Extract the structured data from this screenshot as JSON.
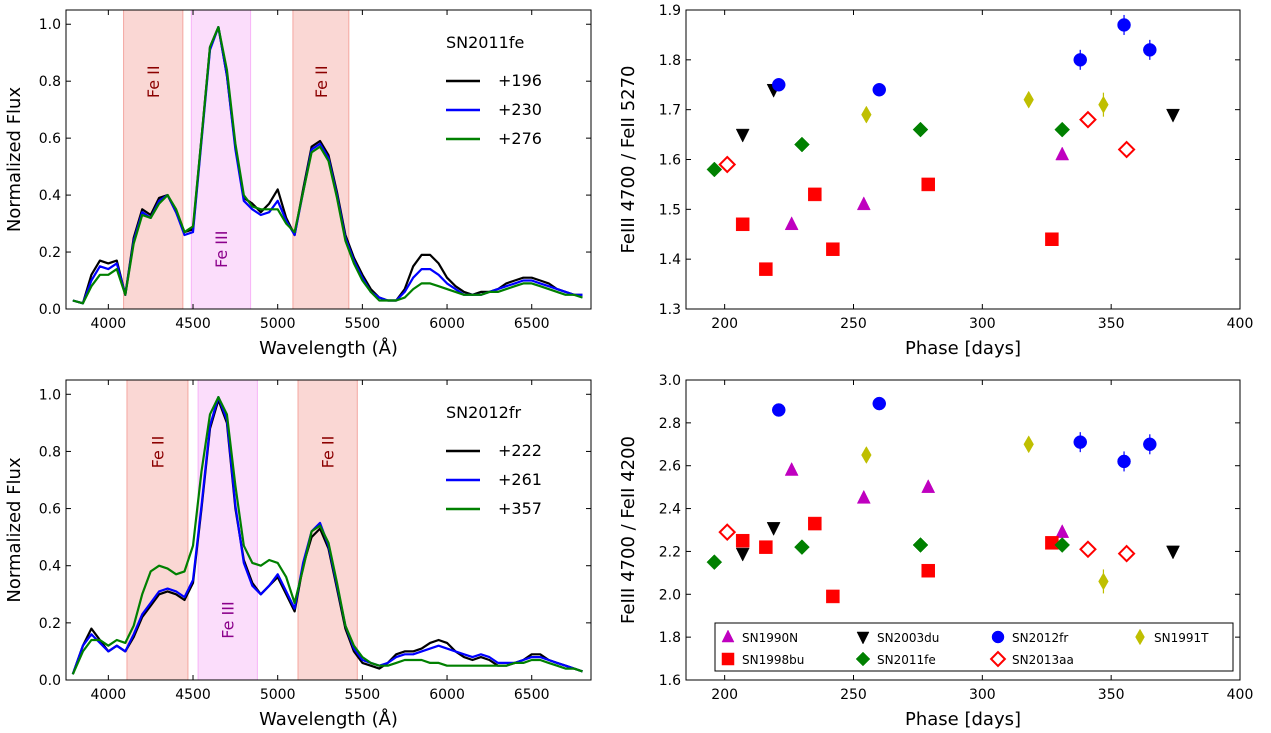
{
  "chart_data": [
    {
      "type": "line",
      "panel": "top-left",
      "xlabel": "Wavelength (Å)",
      "ylabel": "Normalized Flux",
      "xlim": [
        3750,
        6850
      ],
      "ylim": [
        0.0,
        1.05
      ],
      "xticks": [
        4000,
        4500,
        5000,
        5500,
        6000,
        6500
      ],
      "yticks": [
        0.0,
        0.2,
        0.4,
        0.6,
        0.8,
        1.0
      ],
      "legend_title": "SN2011fe",
      "legend_position": "top-right",
      "bands": [
        {
          "label": "Fe II",
          "x0": 4090,
          "x1": 4440,
          "color": "#f4a6a0",
          "label_color": "#8b0000"
        },
        {
          "label": "Fe III",
          "x0": 4490,
          "x1": 4840,
          "color": "#f7b3f7",
          "label_color": "#8b008b"
        },
        {
          "label": "Fe II",
          "x0": 5090,
          "x1": 5420,
          "color": "#f4a6a0",
          "label_color": "#8b0000"
        }
      ],
      "x": [
        3790,
        3850,
        3900,
        3950,
        4000,
        4050,
        4100,
        4150,
        4200,
        4250,
        4300,
        4350,
        4400,
        4450,
        4500,
        4550,
        4600,
        4650,
        4700,
        4750,
        4800,
        4850,
        4900,
        4950,
        5000,
        5050,
        5100,
        5150,
        5200,
        5250,
        5300,
        5350,
        5400,
        5450,
        5500,
        5550,
        5600,
        5650,
        5700,
        5750,
        5800,
        5850,
        5900,
        5950,
        6000,
        6050,
        6100,
        6150,
        6200,
        6250,
        6300,
        6350,
        6400,
        6450,
        6500,
        6550,
        6600,
        6650,
        6700,
        6750,
        6800
      ],
      "series": [
        {
          "name": "+196",
          "color": "#000000",
          "values": [
            0.03,
            0.02,
            0.12,
            0.17,
            0.16,
            0.17,
            0.05,
            0.25,
            0.35,
            0.33,
            0.39,
            0.4,
            0.34,
            0.27,
            0.28,
            0.6,
            0.92,
            0.99,
            0.82,
            0.57,
            0.39,
            0.37,
            0.34,
            0.37,
            0.42,
            0.32,
            0.26,
            0.42,
            0.57,
            0.59,
            0.54,
            0.41,
            0.26,
            0.18,
            0.12,
            0.07,
            0.04,
            0.03,
            0.03,
            0.07,
            0.15,
            0.19,
            0.19,
            0.16,
            0.11,
            0.08,
            0.06,
            0.05,
            0.06,
            0.06,
            0.07,
            0.09,
            0.1,
            0.11,
            0.11,
            0.1,
            0.09,
            0.07,
            0.06,
            0.05,
            0.05
          ]
        },
        {
          "name": "+230",
          "color": "#0000ff",
          "values": [
            0.03,
            0.02,
            0.1,
            0.15,
            0.14,
            0.16,
            0.05,
            0.24,
            0.34,
            0.32,
            0.38,
            0.4,
            0.34,
            0.26,
            0.27,
            0.59,
            0.91,
            0.99,
            0.82,
            0.56,
            0.38,
            0.35,
            0.33,
            0.34,
            0.38,
            0.31,
            0.26,
            0.41,
            0.56,
            0.58,
            0.53,
            0.4,
            0.25,
            0.17,
            0.11,
            0.06,
            0.04,
            0.03,
            0.03,
            0.06,
            0.11,
            0.14,
            0.14,
            0.12,
            0.09,
            0.07,
            0.05,
            0.05,
            0.05,
            0.06,
            0.07,
            0.08,
            0.09,
            0.1,
            0.1,
            0.09,
            0.08,
            0.07,
            0.06,
            0.05,
            0.05
          ]
        },
        {
          "name": "+276",
          "color": "#008000",
          "values": [
            0.03,
            0.02,
            0.08,
            0.12,
            0.12,
            0.14,
            0.05,
            0.23,
            0.33,
            0.32,
            0.37,
            0.4,
            0.35,
            0.27,
            0.29,
            0.6,
            0.92,
            0.99,
            0.84,
            0.58,
            0.4,
            0.36,
            0.35,
            0.35,
            0.35,
            0.3,
            0.27,
            0.41,
            0.55,
            0.57,
            0.52,
            0.39,
            0.24,
            0.16,
            0.1,
            0.06,
            0.03,
            0.03,
            0.03,
            0.04,
            0.07,
            0.09,
            0.09,
            0.08,
            0.07,
            0.06,
            0.05,
            0.05,
            0.05,
            0.06,
            0.06,
            0.07,
            0.08,
            0.09,
            0.09,
            0.08,
            0.07,
            0.06,
            0.05,
            0.05,
            0.04
          ]
        }
      ]
    },
    {
      "type": "line",
      "panel": "bottom-left",
      "xlabel": "Wavelength (Å)",
      "ylabel": "Normalized Flux",
      "xlim": [
        3750,
        6850
      ],
      "ylim": [
        0.0,
        1.05
      ],
      "xticks": [
        4000,
        4500,
        5000,
        5500,
        6000,
        6500
      ],
      "yticks": [
        0.0,
        0.2,
        0.4,
        0.6,
        0.8,
        1.0
      ],
      "legend_title": "SN2012fr",
      "legend_position": "top-right",
      "bands": [
        {
          "label": "Fe II",
          "x0": 4110,
          "x1": 4470,
          "color": "#f4a6a0",
          "label_color": "#8b0000"
        },
        {
          "label": "Fe III",
          "x0": 4530,
          "x1": 4880,
          "color": "#f7b3f7",
          "label_color": "#8b008b"
        },
        {
          "label": "Fe II",
          "x0": 5120,
          "x1": 5470,
          "color": "#f4a6a0",
          "label_color": "#8b0000"
        }
      ],
      "x": [
        3790,
        3850,
        3900,
        3950,
        4000,
        4050,
        4100,
        4150,
        4200,
        4250,
        4300,
        4350,
        4400,
        4450,
        4500,
        4550,
        4600,
        4650,
        4700,
        4750,
        4800,
        4850,
        4900,
        4950,
        5000,
        5050,
        5100,
        5150,
        5200,
        5250,
        5300,
        5350,
        5400,
        5450,
        5500,
        5550,
        5600,
        5650,
        5700,
        5750,
        5800,
        5850,
        5900,
        5950,
        6000,
        6050,
        6100,
        6150,
        6200,
        6250,
        6300,
        6350,
        6400,
        6450,
        6500,
        6550,
        6600,
        6650,
        6700,
        6750,
        6800
      ],
      "series": [
        {
          "name": "+222",
          "color": "#000000",
          "values": [
            0.02,
            0.12,
            0.18,
            0.14,
            0.1,
            0.12,
            0.1,
            0.15,
            0.22,
            0.26,
            0.3,
            0.31,
            0.3,
            0.28,
            0.34,
            0.6,
            0.88,
            0.98,
            0.9,
            0.6,
            0.42,
            0.34,
            0.3,
            0.33,
            0.36,
            0.3,
            0.24,
            0.4,
            0.5,
            0.53,
            0.46,
            0.32,
            0.18,
            0.1,
            0.06,
            0.05,
            0.04,
            0.06,
            0.09,
            0.1,
            0.1,
            0.11,
            0.13,
            0.14,
            0.13,
            0.1,
            0.08,
            0.07,
            0.08,
            0.07,
            0.05,
            0.05,
            0.06,
            0.07,
            0.09,
            0.09,
            0.07,
            0.06,
            0.05,
            0.04,
            0.03
          ]
        },
        {
          "name": "+261",
          "color": "#0000ff",
          "values": [
            0.02,
            0.12,
            0.16,
            0.13,
            0.1,
            0.12,
            0.1,
            0.16,
            0.23,
            0.27,
            0.31,
            0.32,
            0.31,
            0.29,
            0.35,
            0.61,
            0.89,
            0.99,
            0.91,
            0.61,
            0.41,
            0.33,
            0.3,
            0.33,
            0.37,
            0.31,
            0.25,
            0.41,
            0.52,
            0.55,
            0.47,
            0.33,
            0.19,
            0.11,
            0.07,
            0.06,
            0.05,
            0.06,
            0.08,
            0.09,
            0.09,
            0.1,
            0.11,
            0.12,
            0.11,
            0.1,
            0.09,
            0.08,
            0.09,
            0.08,
            0.06,
            0.06,
            0.06,
            0.07,
            0.08,
            0.08,
            0.07,
            0.06,
            0.05,
            0.04,
            0.03
          ]
        },
        {
          "name": "+357",
          "color": "#008000",
          "values": [
            0.02,
            0.1,
            0.14,
            0.14,
            0.12,
            0.14,
            0.13,
            0.19,
            0.3,
            0.38,
            0.4,
            0.39,
            0.37,
            0.38,
            0.47,
            0.73,
            0.93,
            0.99,
            0.93,
            0.68,
            0.47,
            0.41,
            0.4,
            0.42,
            0.41,
            0.36,
            0.27,
            0.39,
            0.52,
            0.54,
            0.48,
            0.34,
            0.19,
            0.12,
            0.08,
            0.06,
            0.05,
            0.05,
            0.06,
            0.07,
            0.07,
            0.07,
            0.06,
            0.06,
            0.05,
            0.05,
            0.05,
            0.05,
            0.05,
            0.05,
            0.05,
            0.05,
            0.06,
            0.06,
            0.07,
            0.07,
            0.06,
            0.05,
            0.04,
            0.04,
            0.03
          ]
        }
      ]
    },
    {
      "type": "scatter",
      "panel": "top-right",
      "xlabel": "Phase [days]",
      "ylabel": "FeIII 4700 / FeII 5270",
      "xlim": [
        185,
        400
      ],
      "ylim": [
        1.3,
        1.9
      ],
      "xticks": [
        200,
        250,
        300,
        350,
        400
      ],
      "yticks": [
        1.3,
        1.4,
        1.5,
        1.6,
        1.7,
        1.8,
        1.9
      ],
      "series": [
        {
          "name": "SN1990N",
          "marker": "triangle-up",
          "color": "#bf00bf",
          "filled": true,
          "points": [
            [
              226,
              1.47
            ],
            [
              254,
              1.51
            ],
            [
              331,
              1.61
            ]
          ]
        },
        {
          "name": "SN1998bu",
          "marker": "square",
          "color": "#ff0000",
          "filled": true,
          "points": [
            [
              207,
              1.47
            ],
            [
              216,
              1.38
            ],
            [
              235,
              1.53
            ],
            [
              242,
              1.42
            ],
            [
              279,
              1.55
            ],
            [
              327,
              1.44
            ]
          ]
        },
        {
          "name": "SN2003du",
          "marker": "triangle-down",
          "color": "#000000",
          "filled": true,
          "points": [
            [
              207,
              1.65
            ],
            [
              219,
              1.74
            ],
            [
              374,
              1.69
            ]
          ]
        },
        {
          "name": "SN2011fe",
          "marker": "diamond",
          "color": "#008000",
          "filled": true,
          "points": [
            [
              196,
              1.58
            ],
            [
              230,
              1.63
            ],
            [
              276,
              1.66
            ],
            [
              331,
              1.66
            ]
          ]
        },
        {
          "name": "SN2012fr",
          "marker": "circle",
          "color": "#0000ff",
          "filled": true,
          "points": [
            [
              221,
              1.75
            ],
            [
              260,
              1.74
            ],
            [
              338,
              1.8
            ],
            [
              355,
              1.87
            ],
            [
              365,
              1.82
            ]
          ]
        },
        {
          "name": "SN2013aa",
          "marker": "diamond",
          "color": "#ff0000",
          "filled": false,
          "points": [
            [
              201,
              1.59
            ],
            [
              341,
              1.68
            ],
            [
              356,
              1.62
            ]
          ]
        },
        {
          "name": "SN1991T",
          "marker": "thin-diamond",
          "color": "#bfbf00",
          "filled": true,
          "points": [
            [
              255,
              1.69
            ],
            [
              318,
              1.72
            ],
            [
              347,
              1.71
            ]
          ]
        }
      ]
    },
    {
      "type": "scatter",
      "panel": "bottom-right",
      "xlabel": "Phase [days]",
      "ylabel": "FeIII 4700 / FeII 4200",
      "xlim": [
        185,
        400
      ],
      "ylim": [
        1.6,
        3.0
      ],
      "xticks": [
        200,
        250,
        300,
        350,
        400
      ],
      "yticks": [
        1.6,
        1.8,
        2.0,
        2.2,
        2.4,
        2.6,
        2.8,
        3.0
      ],
      "legend_position": "lower-center",
      "series": [
        {
          "name": "SN1990N",
          "marker": "triangle-up",
          "color": "#bf00bf",
          "filled": true,
          "points": [
            [
              226,
              2.58
            ],
            [
              254,
              2.45
            ],
            [
              279,
              2.5
            ],
            [
              331,
              2.29
            ]
          ]
        },
        {
          "name": "SN1998bu",
          "marker": "square",
          "color": "#ff0000",
          "filled": true,
          "points": [
            [
              207,
              2.25
            ],
            [
              216,
              2.22
            ],
            [
              235,
              2.33
            ],
            [
              242,
              1.99
            ],
            [
              279,
              2.11
            ],
            [
              327,
              2.24
            ]
          ]
        },
        {
          "name": "SN2003du",
          "marker": "triangle-down",
          "color": "#000000",
          "filled": true,
          "points": [
            [
              207,
              2.19
            ],
            [
              219,
              2.31
            ],
            [
              374,
              2.2
            ]
          ]
        },
        {
          "name": "SN2011fe",
          "marker": "diamond",
          "color": "#008000",
          "filled": true,
          "points": [
            [
              196,
              2.15
            ],
            [
              230,
              2.22
            ],
            [
              276,
              2.23
            ],
            [
              331,
              2.23
            ]
          ]
        },
        {
          "name": "SN2012fr",
          "marker": "circle",
          "color": "#0000ff",
          "filled": true,
          "points": [
            [
              221,
              2.86
            ],
            [
              260,
              2.89
            ],
            [
              338,
              2.71
            ],
            [
              355,
              2.62
            ],
            [
              365,
              2.7
            ]
          ]
        },
        {
          "name": "SN2013aa",
          "marker": "diamond",
          "color": "#ff0000",
          "filled": false,
          "points": [
            [
              201,
              2.29
            ],
            [
              341,
              2.21
            ],
            [
              356,
              2.19
            ]
          ]
        },
        {
          "name": "SN1991T",
          "marker": "thin-diamond",
          "color": "#bfbf00",
          "filled": true,
          "points": [
            [
              255,
              2.65
            ],
            [
              318,
              2.7
            ],
            [
              347,
              2.06
            ]
          ]
        }
      ]
    }
  ]
}
